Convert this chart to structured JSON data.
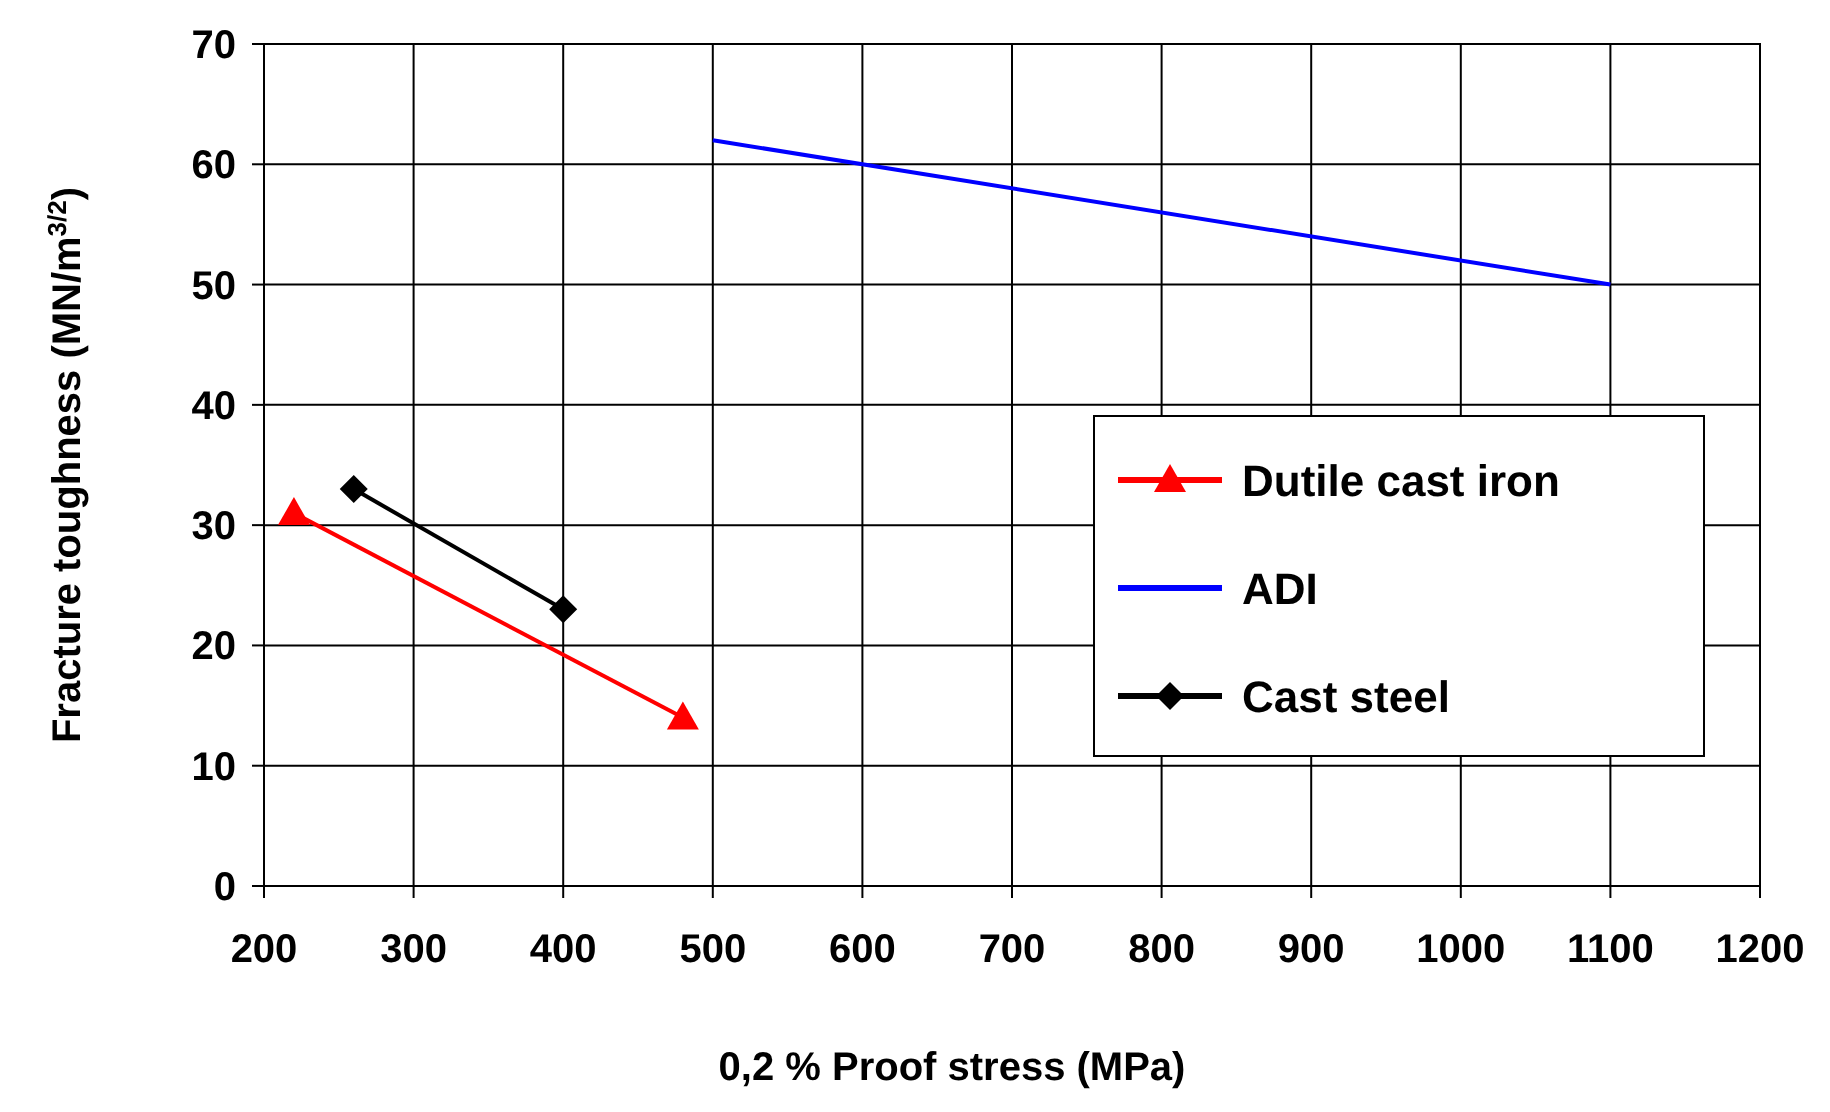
{
  "chart_data": {
    "type": "line",
    "xlabel": "0,2 % Proof stress (MPa)",
    "ylabel": "Fracture toughness (MN/m$^{3/2}$)",
    "xlim": [
      200,
      1200
    ],
    "xticks": [
      200,
      300,
      400,
      500,
      600,
      700,
      800,
      900,
      1000,
      1100,
      1200
    ],
    "ylim": [
      0,
      70
    ],
    "yticks": [
      0,
      10,
      20,
      30,
      40,
      50,
      60,
      70
    ],
    "grid": true,
    "legend": "right",
    "series": [
      {
        "name": "Dutile cast iron",
        "color": "#ff0000",
        "marker": "triangle",
        "x": [
          220,
          480
        ],
        "values": [
          31,
          14
        ]
      },
      {
        "name": "ADI",
        "color": "#0000ff",
        "marker": "none",
        "x": [
          500,
          1100
        ],
        "values": [
          62,
          50
        ]
      },
      {
        "name": "Cast steel",
        "color": "#000000",
        "marker": "diamond",
        "x": [
          260,
          400
        ],
        "values": [
          33,
          23
        ]
      }
    ]
  }
}
